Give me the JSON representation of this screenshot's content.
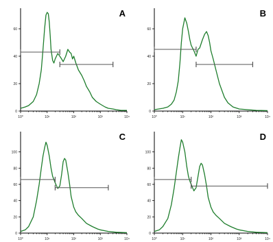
{
  "figure": {
    "line_color": "#1e7d2c",
    "marker_color": "#555555",
    "x_tick_labels": [
      "10⁰",
      "10¹",
      "10²",
      "10³",
      "10⁴"
    ]
  },
  "chart_data": [
    {
      "type": "line",
      "panel_label": "A",
      "x_scale": "log",
      "xlim": [
        1,
        10000
      ],
      "ylim": [
        0,
        75
      ],
      "y_ticks": [
        0,
        20,
        40,
        60
      ],
      "y_tick_labels": [
        "0",
        "20",
        "40",
        "60"
      ],
      "x": [
        1,
        1.5,
        2,
        3,
        4,
        5,
        6,
        7,
        8,
        9,
        10,
        11,
        12,
        13,
        14,
        16,
        18,
        20,
        25,
        30,
        35,
        40,
        50,
        60,
        70,
        80,
        90,
        100,
        120,
        150,
        200,
        250,
        300,
        400,
        500,
        700,
        1000,
        1500,
        2000,
        3000,
        4000,
        6000,
        10000
      ],
      "y": [
        2,
        3,
        4,
        7,
        12,
        20,
        30,
        45,
        60,
        70,
        72,
        71,
        65,
        55,
        45,
        37,
        35,
        38,
        42,
        40,
        38,
        36,
        40,
        45,
        43,
        42,
        38,
        40,
        35,
        30,
        26,
        22,
        18,
        14,
        10,
        7,
        5,
        3,
        2,
        1.5,
        1,
        0.5,
        0.5
      ],
      "markers": [
        {
          "x_start": 1,
          "x_end": 30,
          "y": 43
        },
        {
          "x_start": 30,
          "x_end": 3000,
          "y": 34
        }
      ]
    },
    {
      "type": "line",
      "panel_label": "B",
      "x_scale": "log",
      "xlim": [
        1,
        10000
      ],
      "ylim": [
        0,
        75
      ],
      "y_ticks": [
        0,
        20,
        40,
        60
      ],
      "y_tick_labels": [
        "0",
        "20",
        "40",
        "60"
      ],
      "x": [
        1,
        2,
        3,
        4,
        5,
        6,
        7,
        8,
        9,
        10,
        12,
        14,
        16,
        18,
        20,
        25,
        30,
        35,
        40,
        50,
        60,
        70,
        80,
        90,
        100,
        120,
        150,
        200,
        300,
        400,
        600,
        1000,
        2000,
        4000,
        10000
      ],
      "y": [
        1,
        2,
        3,
        5,
        8,
        14,
        22,
        35,
        50,
        60,
        68,
        64,
        58,
        52,
        48,
        44,
        40,
        45,
        46,
        52,
        56,
        58,
        55,
        50,
        44,
        38,
        30,
        20,
        10,
        6,
        3,
        1.5,
        1,
        0.5,
        0.3
      ],
      "markers": [
        {
          "x_start": 1,
          "x_end": 30,
          "y": 45
        },
        {
          "x_start": 30,
          "x_end": 3000,
          "y": 34
        }
      ]
    },
    {
      "type": "line",
      "panel_label": "C",
      "x_scale": "log",
      "xlim": [
        1,
        10000
      ],
      "ylim": [
        0,
        125
      ],
      "y_ticks": [
        0,
        20,
        40,
        60,
        80,
        100
      ],
      "y_tick_labels": [
        "0",
        "20",
        "40",
        "60",
        "80",
        "100"
      ],
      "x": [
        1,
        1.5,
        2,
        3,
        4,
        5,
        6,
        7,
        8,
        9,
        10,
        12,
        14,
        16,
        18,
        20,
        25,
        30,
        35,
        40,
        45,
        50,
        60,
        70,
        80,
        100,
        120,
        150,
        200,
        300,
        500,
        800,
        1000,
        2000,
        4000,
        10000
      ],
      "y": [
        2,
        4,
        8,
        20,
        40,
        60,
        80,
        95,
        105,
        112,
        108,
        95,
        80,
        70,
        66,
        62,
        55,
        58,
        72,
        88,
        92,
        90,
        75,
        60,
        45,
        32,
        26,
        22,
        18,
        12,
        8,
        5,
        4,
        2,
        1,
        0.5
      ],
      "markers": [
        {
          "x_start": 1,
          "x_end": 20,
          "y": 66
        },
        {
          "x_start": 20,
          "x_end": 2000,
          "y": 56
        }
      ]
    },
    {
      "type": "line",
      "panel_label": "D",
      "x_scale": "log",
      "xlim": [
        1,
        10000
      ],
      "ylim": [
        0,
        125
      ],
      "y_ticks": [
        0,
        20,
        40,
        60,
        80,
        100
      ],
      "y_tick_labels": [
        "0",
        "20",
        "40",
        "60",
        "80",
        "100"
      ],
      "x": [
        1,
        1.5,
        2,
        3,
        4,
        5,
        6,
        7,
        8,
        9,
        10,
        12,
        14,
        16,
        18,
        20,
        25,
        30,
        35,
        40,
        45,
        50,
        60,
        70,
        80,
        100,
        120,
        150,
        200,
        300,
        500,
        800,
        1000,
        2000,
        4000,
        10000
      ],
      "y": [
        2,
        4,
        8,
        18,
        35,
        55,
        75,
        92,
        105,
        115,
        112,
        100,
        82,
        70,
        64,
        60,
        52,
        56,
        70,
        82,
        86,
        84,
        72,
        58,
        44,
        32,
        26,
        22,
        18,
        12,
        8,
        5,
        4,
        2,
        1,
        0.5
      ],
      "markers": [
        {
          "x_start": 1,
          "x_end": 20,
          "y": 66
        },
        {
          "x_start": 20,
          "x_end": 10000,
          "y": 58
        }
      ]
    }
  ]
}
